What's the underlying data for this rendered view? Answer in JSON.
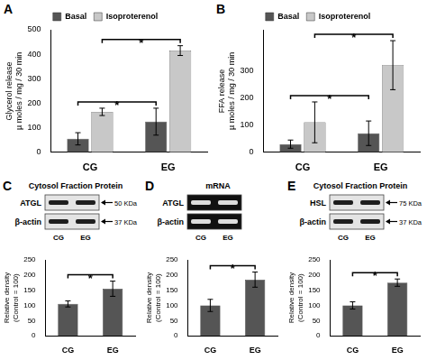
{
  "chart_data": [
    {
      "panel": "A",
      "type": "bar",
      "categories": [
        "CG",
        "EG"
      ],
      "ylabel": [
        "Glycerol release",
        "µ moles / mg / 30 min"
      ],
      "series": [
        {
          "name": "Basal",
          "color": "#555555",
          "values": [
            55,
            125
          ],
          "errors": [
            25,
            55
          ]
        },
        {
          "name": "Isoproterenol",
          "color": "#c8c8c8",
          "values": [
            165,
            415
          ],
          "errors": [
            15,
            20
          ]
        }
      ],
      "ylim": [
        0,
        500
      ],
      "yticks": [
        0,
        100,
        200,
        300,
        400,
        500
      ],
      "legend": "top",
      "grid": false,
      "significance": [
        {
          "series": "Basal",
          "from": "CG",
          "to": "EG",
          "label": "*"
        },
        {
          "series": "Isoproterenol",
          "from": "CG",
          "to": "EG",
          "label": "*"
        }
      ]
    },
    {
      "panel": "B",
      "type": "bar",
      "categories": [
        "CG",
        "EG"
      ],
      "ylabel": [
        "FFA release",
        "µ moles / mg / 30 min"
      ],
      "series": [
        {
          "name": "Basal",
          "color": "#555555",
          "values": [
            30,
            70
          ],
          "errors": [
            15,
            45
          ]
        },
        {
          "name": "Isoproterenol",
          "color": "#c8c8c8",
          "values": [
            110,
            320
          ],
          "errors": [
            75,
            90
          ]
        }
      ],
      "ylim": [
        0,
        450
      ],
      "yticks": [
        0,
        100,
        200,
        300
      ],
      "legend": "top",
      "grid": false,
      "significance": [
        {
          "series": "Basal",
          "from": "CG",
          "to": "EG",
          "label": "*"
        },
        {
          "series": "Isoproterenol",
          "from": "CG",
          "to": "EG",
          "label": "*"
        }
      ]
    },
    {
      "panel": "C",
      "type": "bar",
      "blot": {
        "type": "western",
        "title": "Cytosol Fraction Protein",
        "lanes": [
          "CG",
          "EG"
        ],
        "bands": [
          {
            "label": "ATGL",
            "size": "50 KDa"
          },
          {
            "label": "β-actin",
            "size": "37 KDa"
          }
        ]
      },
      "categories": [
        "CG",
        "EG"
      ],
      "ylabel": [
        "Relative density",
        "(Control = 100)"
      ],
      "values": [
        105,
        155
      ],
      "errors": [
        10,
        25
      ],
      "color": "#555555",
      "ylim": [
        0,
        250
      ],
      "yticks": [
        0,
        50,
        100,
        150,
        200,
        250
      ],
      "grid": false,
      "significance": [
        {
          "from": "CG",
          "to": "EG",
          "label": "*"
        }
      ]
    },
    {
      "panel": "D",
      "type": "bar",
      "blot": {
        "type": "gel",
        "title": "mRNA",
        "lanes": [
          "CG",
          "EG"
        ],
        "bands": [
          {
            "label": "ATGL"
          },
          {
            "label": "β-actin"
          }
        ]
      },
      "categories": [
        "CG",
        "EG"
      ],
      "ylabel": [
        "Relative density",
        "(Control = 100)"
      ],
      "values": [
        100,
        185
      ],
      "errors": [
        20,
        25
      ],
      "color": "#555555",
      "ylim": [
        0,
        250
      ],
      "yticks": [
        0,
        50,
        100,
        150,
        200,
        250
      ],
      "grid": false,
      "significance": [
        {
          "from": "CG",
          "to": "EG",
          "label": "*"
        }
      ]
    },
    {
      "panel": "E",
      "type": "bar",
      "blot": {
        "type": "western",
        "title": "Cytosol Fraction Protein",
        "lanes": [
          "CG",
          "EG"
        ],
        "bands": [
          {
            "label": "HSL",
            "size": "75 KDa"
          },
          {
            "label": "β-actin",
            "size": "37 KDa"
          }
        ]
      },
      "categories": [
        "CG",
        "EG"
      ],
      "ylabel": [
        "Relative density",
        "(Control = 100)"
      ],
      "values": [
        100,
        175
      ],
      "errors": [
        12,
        12
      ],
      "color": "#555555",
      "ylim": [
        0,
        250
      ],
      "yticks": [
        0,
        50,
        100,
        150,
        200,
        250
      ],
      "grid": false,
      "significance": [
        {
          "from": "CG",
          "to": "EG",
          "label": "*"
        }
      ]
    }
  ]
}
